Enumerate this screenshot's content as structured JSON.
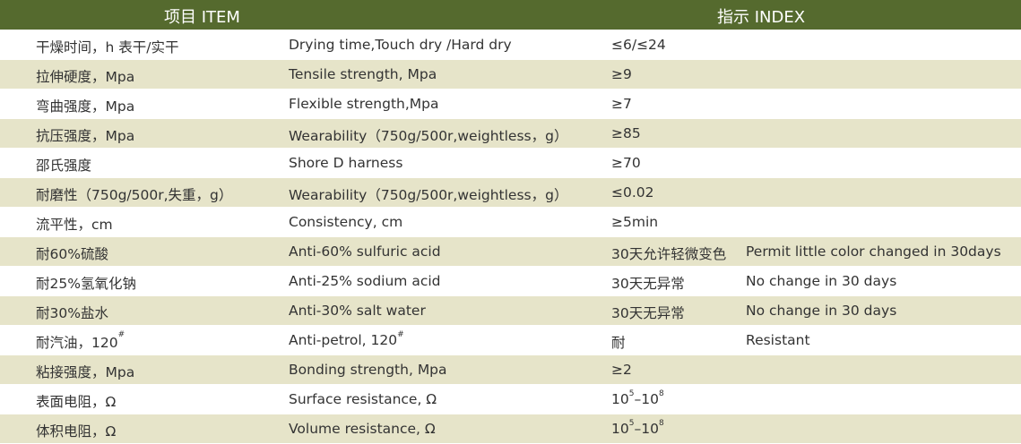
{
  "header": {
    "item": "项目  ITEM",
    "index": "指示  INDEX",
    "bg": "#556a2e",
    "stripe": "#e6e4c9"
  },
  "rows": [
    {
      "cn": "干燥时间，h  表干/实干",
      "en": "Drying time,Touch dry /Hard dry",
      "idx": "≤6/≤24",
      "note": ""
    },
    {
      "cn": "拉伸硬度，Mpa",
      "en": "Tensile strength, Mpa",
      "idx": "≥9",
      "note": ""
    },
    {
      "cn": "弯曲强度，Mpa",
      "en": "Flexible strength,Mpa",
      "idx": "≥7",
      "note": ""
    },
    {
      "cn": "抗压强度，Mpa",
      "en": "Wearability（750g/500r,weightless，g）",
      "idx": "≥85",
      "note": ""
    },
    {
      "cn": "邵氏强度",
      "en": "Shore D harness",
      "idx": "≥70",
      "note": ""
    },
    {
      "cn": "耐磨性（750g/500r,失重，g）",
      "en": "Wearability（750g/500r,weightless，g）",
      "idx": "≤0.02",
      "note": ""
    },
    {
      "cn": "流平性，cm",
      "en": "Consistency, cm",
      "idx": "≥5min",
      "note": ""
    },
    {
      "cn": "耐60%硫酸",
      "en": "Anti-60% sulfuric acid",
      "idx": "30天允许轻微变色",
      "note": "Permit little color changed in 30days"
    },
    {
      "cn": "耐25%氢氧化钠",
      "en": "Anti-25% sodium acid",
      "idx": "30天无异常",
      "note": "No change in 30 days"
    },
    {
      "cn": "耐30%盐水",
      "en": "Anti-30% salt water",
      "idx": "30天无异常",
      "note": "No change in 30 days"
    },
    {
      "cn": "耐汽油，120",
      "cn_sup": "#",
      "en": "Anti-petrol, 120",
      "en_sup": "#",
      "idx": "耐",
      "note": "Resistant"
    },
    {
      "cn": "粘接强度，Mpa",
      "en": "Bonding strength, Mpa",
      "idx": "≥2",
      "note": ""
    },
    {
      "cn": "表面电阻，Ω",
      "en": "Surface resistance, Ω",
      "idx": "10",
      "idx_sup": "5",
      "idx2": "–10",
      "idx2_sup": "8",
      "note": ""
    },
    {
      "cn": "体积电阻，Ω",
      "en": "Volume resistance, Ω",
      "idx": "10",
      "idx_sup": "5",
      "idx2": "–10",
      "idx2_sup": "8",
      "note": ""
    }
  ]
}
